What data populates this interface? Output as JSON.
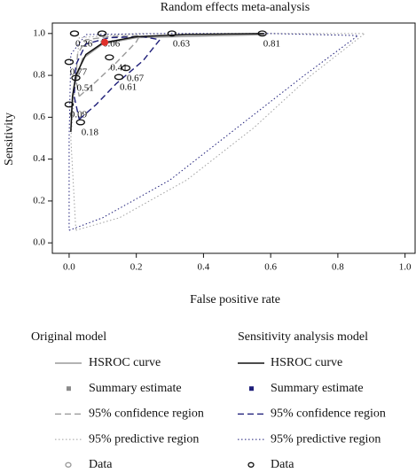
{
  "chart_data": {
    "type": "line",
    "title": "Random effects meta-analysis",
    "x_label": "False positive rate",
    "y_label": "Sensitivity",
    "xlim": [
      -0.05,
      1.03
    ],
    "ylim": [
      -0.05,
      1.05
    ],
    "xticks": [
      {
        "value": 0,
        "label": "0.0"
      },
      {
        "value": 0.2,
        "label": "0.2"
      },
      {
        "value": 0.4,
        "label": "0.4"
      },
      {
        "value": 0.6,
        "label": "0.6"
      },
      {
        "value": 0.8,
        "label": "0.8"
      },
      {
        "value": 1,
        "label": "1.0"
      }
    ],
    "yticks": [
      {
        "value": 0,
        "label": "0.0"
      },
      {
        "value": 0.2,
        "label": "0.2"
      },
      {
        "value": 0.4,
        "label": "0.4"
      },
      {
        "value": 0.6,
        "label": "0.6"
      },
      {
        "value": 0.8,
        "label": "0.8"
      },
      {
        "value": 1,
        "label": "1.0"
      }
    ],
    "models": [
      {
        "name": "Original model",
        "hsroc": {
          "name": "HSROC curve",
          "color": "#9a9a9a",
          "x": [
            0.005,
            0.015,
            0.04,
            0.1,
            0.2,
            0.58
          ],
          "y": [
            0.6,
            0.75,
            0.88,
            0.95,
            0.98,
            0.995
          ]
        },
        "summary": {
          "name": "Summary estimate",
          "color": "#8a8a8a",
          "x": [
            0.1
          ],
          "y": [
            0.96
          ]
        },
        "confidence": {
          "name": "95% confidence region",
          "color": "#9a9a9a",
          "x": [
            0.03,
            0.08,
            0.14,
            0.2,
            0.21,
            0.12,
            0.05,
            0.025,
            0.02,
            0.03
          ],
          "y": [
            0.7,
            0.77,
            0.86,
            0.96,
            0.99,
            0.985,
            0.97,
            0.9,
            0.78,
            0.7
          ]
        },
        "predictive": {
          "name": "95% predictive region",
          "color": "#a0a0a0",
          "x": [
            0.02,
            0.15,
            0.35,
            0.55,
            0.72,
            0.88,
            0.5,
            0.2,
            0.03,
            0.005,
            0.02
          ],
          "y": [
            0.06,
            0.12,
            0.3,
            0.55,
            0.8,
            1.0,
            1.0,
            1.0,
            0.98,
            0.5,
            0.06
          ]
        },
        "data": {
          "name": "Data",
          "color": "#9a9a9a",
          "x": [
            0.016,
            0.098
          ],
          "y": [
            1.0,
            1.0
          ]
        }
      },
      {
        "name": "Sensitivity analysis model",
        "hsroc": {
          "name": "HSROC curve",
          "color": "#111111",
          "x": [
            0.005,
            0.01,
            0.02,
            0.05,
            0.1,
            0.2,
            0.35,
            0.58
          ],
          "y": [
            0.53,
            0.7,
            0.8,
            0.9,
            0.955,
            0.985,
            0.995,
            1.0
          ]
        },
        "summary": {
          "name": "Summary estimate",
          "color": "#1f1f7a",
          "marker_color": "#e0302a",
          "x": [
            0.106
          ],
          "y": [
            0.958
          ]
        },
        "confidence": {
          "name": "95% confidence region",
          "color": "#1f1f7a",
          "x": [
            0.03,
            0.08,
            0.14,
            0.22,
            0.27,
            0.22,
            0.12,
            0.05,
            0.02,
            0.015,
            0.03
          ],
          "y": [
            0.59,
            0.66,
            0.76,
            0.87,
            0.97,
            0.985,
            0.98,
            0.95,
            0.85,
            0.7,
            0.59
          ]
        },
        "predictive": {
          "name": "95% predictive region",
          "color": "#1f1f7a",
          "x": [
            0.0,
            0.1,
            0.3,
            0.5,
            0.7,
            0.86,
            0.6,
            0.3,
            0.05,
            0.005,
            0.0,
            0.0
          ],
          "y": [
            0.06,
            0.12,
            0.3,
            0.55,
            0.8,
            0.99,
            1.0,
            1.0,
            0.995,
            0.9,
            0.5,
            0.06
          ]
        },
        "data": {
          "name": "Data",
          "color": "#111111",
          "x": [
            0.016,
            0.098,
            0.306,
            0.575,
            0.0,
            0.02,
            0.12,
            0.169,
            0.148,
            0.0,
            0.034
          ],
          "y": [
            1.0,
            1.0,
            1.0,
            1.0,
            0.864,
            0.788,
            0.886,
            0.835,
            0.792,
            0.661,
            0.576
          ],
          "labels": [
            0.26,
            0.06,
            0.63,
            0.81,
            0.77,
            0.51,
            0.41,
            0.67,
            0.61,
            0.09,
            0.18
          ]
        }
      }
    ]
  }
}
